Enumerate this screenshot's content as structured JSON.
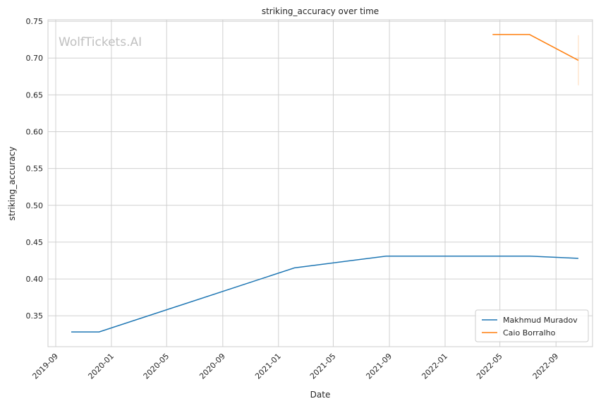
{
  "chart_data": {
    "type": "line",
    "title": "striking_accuracy over time",
    "xlabel": "Date",
    "ylabel": "striking_accuracy",
    "watermark": "WolfTickets.AI",
    "grid": true,
    "legend_position": "bottom-right",
    "xlim": [
      "2019-08-15",
      "2022-11-20"
    ],
    "ylim": [
      0.308,
      0.752
    ],
    "x_ticks": [
      "2019-09",
      "2020-01",
      "2020-05",
      "2020-09",
      "2021-01",
      "2021-05",
      "2021-09",
      "2022-01",
      "2022-05",
      "2022-09"
    ],
    "y_ticks": [
      "0.35",
      "0.40",
      "0.45",
      "0.50",
      "0.55",
      "0.60",
      "0.65",
      "0.70",
      "0.75"
    ],
    "series": [
      {
        "name": "Makhmud Muradov",
        "color": "#1f77b4",
        "points": [
          {
            "x": "2019-10-05",
            "y": 0.328
          },
          {
            "x": "2019-12-05",
            "y": 0.328
          },
          {
            "x": "2021-02-05",
            "y": 0.415
          },
          {
            "x": "2021-08-25",
            "y": 0.431
          },
          {
            "x": "2022-07-05",
            "y": 0.431
          },
          {
            "x": "2022-10-20",
            "y": 0.428
          }
        ]
      },
      {
        "name": "Caio Borralho",
        "color": "#ff7f0e",
        "points": [
          {
            "x": "2022-04-15",
            "y": 0.732
          },
          {
            "x": "2022-07-05",
            "y": 0.732
          },
          {
            "x": "2022-10-20",
            "y": 0.697
          }
        ],
        "error_band": {
          "x": "2022-10-20",
          "low": 0.663,
          "high": 0.731
        }
      }
    ]
  }
}
